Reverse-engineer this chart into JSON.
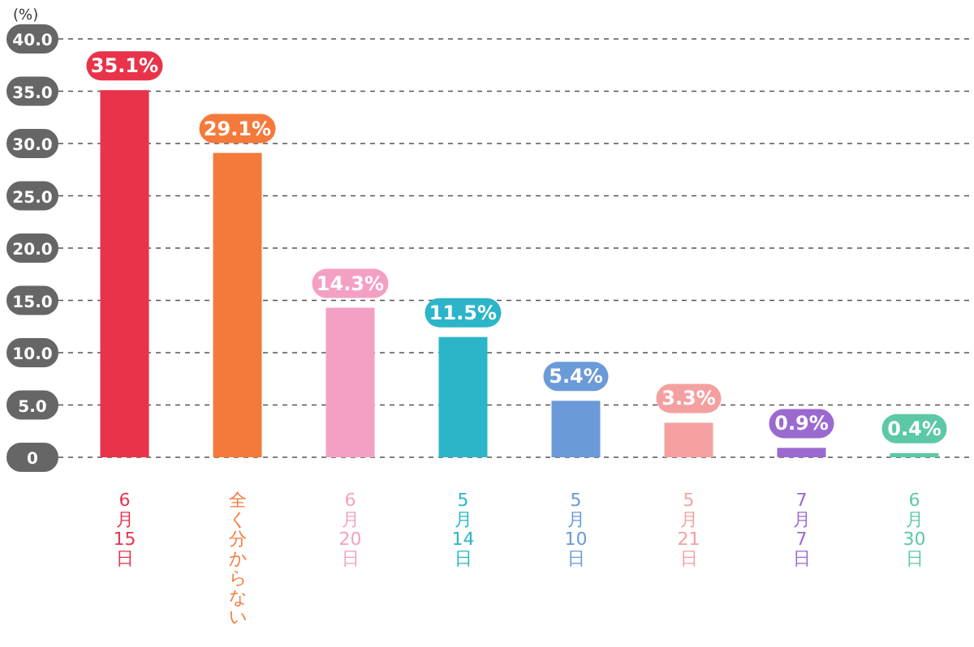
{
  "chart_data": {
    "type": "bar",
    "ylabel": "(%)",
    "categories": [
      "6月15日",
      "全く分からない",
      "6月20日",
      "5月14日",
      "5月10日",
      "5月21日",
      "7月7日",
      "6月30日"
    ],
    "values": [
      35.1,
      29.1,
      14.3,
      11.5,
      5.4,
      3.3,
      0.9,
      0.4
    ],
    "value_labels": [
      "35.1%",
      "29.1%",
      "14.3%",
      "11.5%",
      "5.4%",
      "3.3%",
      "0.9%",
      "0.4%"
    ],
    "colors": [
      "#e8334a",
      "#f47a3c",
      "#f4a0c4",
      "#2cb5c8",
      "#6a9ad8",
      "#f5a0a0",
      "#9a6ad0",
      "#5cc8a8"
    ],
    "ylim": [
      0,
      40
    ],
    "yticks": [
      {
        "value": 0,
        "label": "0"
      },
      {
        "value": 5,
        "label": "5.0"
      },
      {
        "value": 10,
        "label": "10.0"
      },
      {
        "value": 15,
        "label": "15.0"
      },
      {
        "value": 20,
        "label": "20.0"
      },
      {
        "value": 25,
        "label": "25.0"
      },
      {
        "value": 30,
        "label": "30.0"
      },
      {
        "value": 35,
        "label": "35.0"
      },
      {
        "value": 40,
        "label": "40.0"
      }
    ],
    "grid": "y"
  }
}
